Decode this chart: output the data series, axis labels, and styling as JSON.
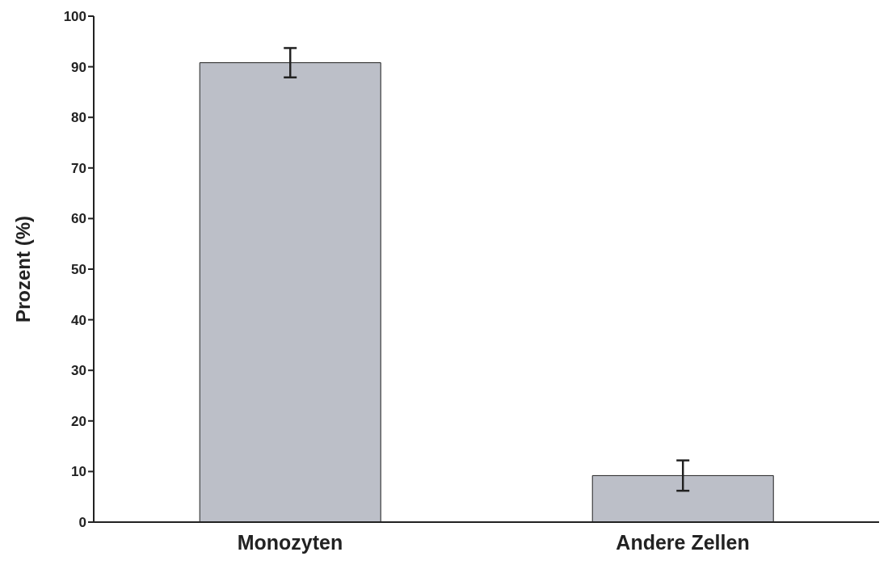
{
  "chart_data": {
    "type": "bar",
    "ylabel": "Prozent (%)",
    "categories": [
      "Monozyten",
      "Andere Zellen"
    ],
    "values": [
      90.8,
      9.2
    ],
    "errors": [
      2.9,
      3.0
    ],
    "color": "#bcbfc8",
    "ylim": [
      0,
      100
    ],
    "yticks": [
      0,
      10,
      20,
      30,
      40,
      50,
      60,
      70,
      80,
      90,
      100
    ],
    "grid": false,
    "legend": false
  }
}
